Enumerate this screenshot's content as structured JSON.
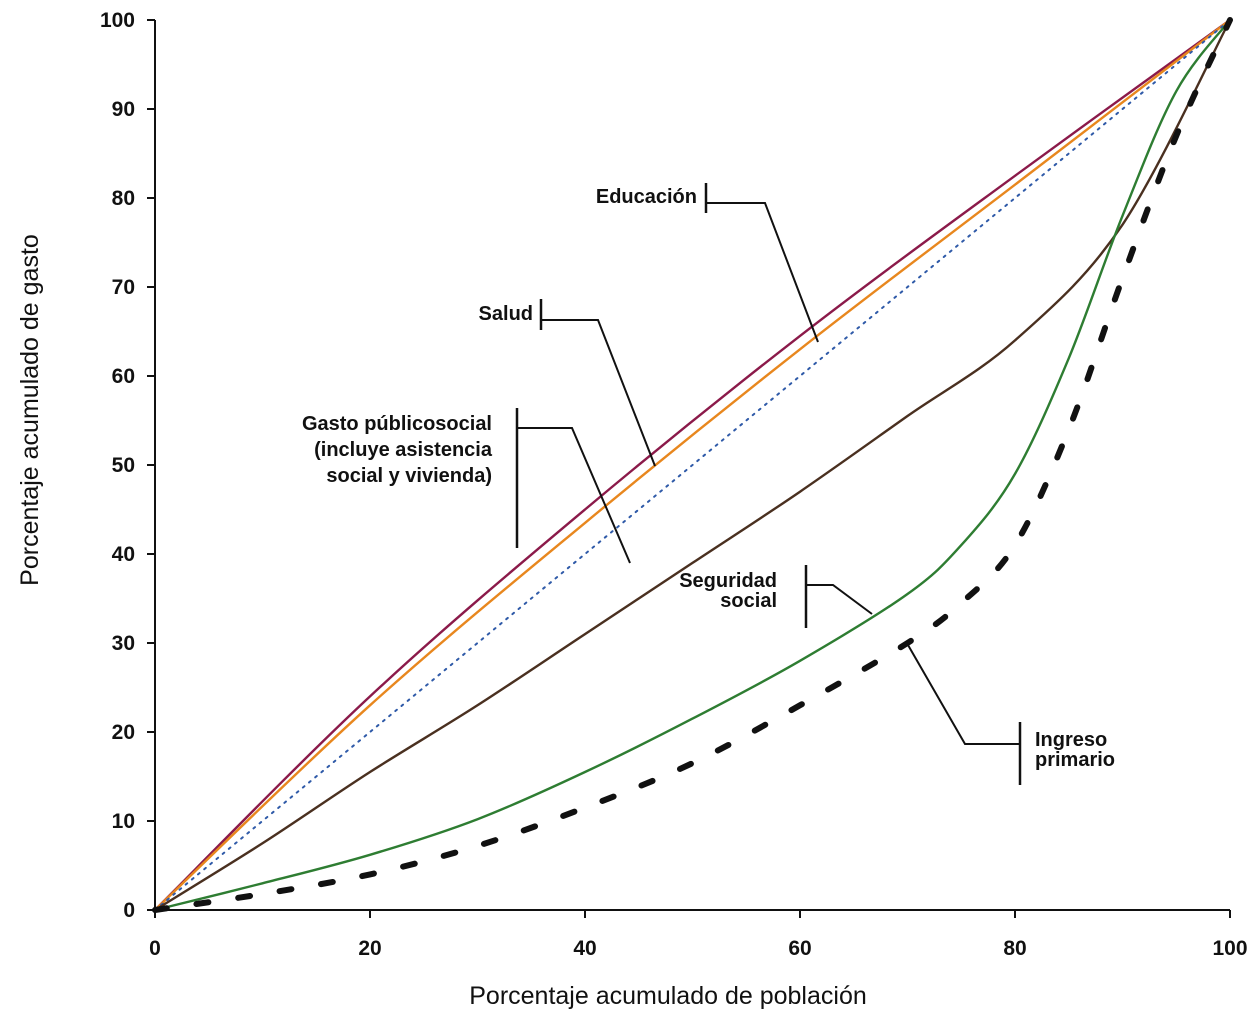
{
  "chart_data": {
    "type": "line",
    "title": "",
    "xlabel": "Porcentaje acumulado de población",
    "ylabel": "Porcentaje acumulado de gasto",
    "xlim": [
      0,
      100
    ],
    "ylim": [
      0,
      100
    ],
    "xticks": [
      "0",
      "20",
      "40",
      "60",
      "80",
      "100"
    ],
    "yticks": [
      "0",
      "10",
      "20",
      "30",
      "40",
      "50",
      "60",
      "70",
      "80",
      "90",
      "100"
    ],
    "grid": false,
    "legend": "none",
    "series": [
      {
        "name": "Educación",
        "color": "#8b1a4a",
        "style": "solid",
        "x": [
          0,
          20,
          40,
          60,
          80,
          100
        ],
        "y": [
          0,
          24,
          45,
          64.5,
          82.5,
          100
        ]
      },
      {
        "name": "Salud",
        "color": "#e8871e",
        "style": "solid",
        "x": [
          0,
          20,
          40,
          60,
          80,
          100
        ],
        "y": [
          0,
          23,
          43.5,
          63,
          81.5,
          100
        ]
      },
      {
        "name": "Gasto públicosocial (incluye asistencia social y vivienda)",
        "color": "#2f5aa8",
        "style": "dotted",
        "x": [
          0,
          20,
          40,
          60,
          80,
          100
        ],
        "y": [
          0,
          20,
          40,
          60,
          80,
          100
        ]
      },
      {
        "name": "Seguridad social",
        "color": "#4a3020",
        "style": "solid",
        "x": [
          0,
          10,
          20,
          30,
          40,
          50,
          60,
          70,
          80,
          90,
          100
        ],
        "y": [
          0,
          7.5,
          15.5,
          23,
          31,
          39,
          47,
          55.5,
          64,
          77,
          100
        ]
      },
      {
        "name": "",
        "color": "#2e7d32",
        "style": "solid",
        "x": [
          0,
          10,
          20,
          30,
          40,
          50,
          60,
          70,
          75,
          80,
          85,
          90,
          95,
          100
        ],
        "y": [
          0,
          3,
          6.2,
          10.2,
          15.5,
          21.5,
          28,
          35.5,
          41,
          49,
          62,
          78,
          92,
          100
        ]
      },
      {
        "name": "Ingreso primario",
        "color": "#111111",
        "style": "dashed",
        "x": [
          0,
          10,
          20,
          30,
          40,
          50,
          60,
          70,
          75,
          80,
          85,
          90,
          95,
          100
        ],
        "y": [
          0,
          1.8,
          4,
          7.2,
          11.5,
          16.5,
          23,
          30,
          34.5,
          41,
          54,
          71,
          87,
          100
        ]
      }
    ],
    "annotations": [
      {
        "lines": [
          "Educación"
        ],
        "color": "#111111"
      },
      {
        "lines": [
          "Salud"
        ],
        "color": "#111111"
      },
      {
        "lines": [
          "Gasto públicosocial",
          "(incluye asistencia",
          "social y vivienda)"
        ],
        "color": "#111111"
      },
      {
        "lines": [
          "Seguridad",
          "social"
        ],
        "color": "#111111"
      },
      {
        "lines": [
          "Ingreso",
          "primario"
        ],
        "color": "#111111"
      }
    ]
  }
}
